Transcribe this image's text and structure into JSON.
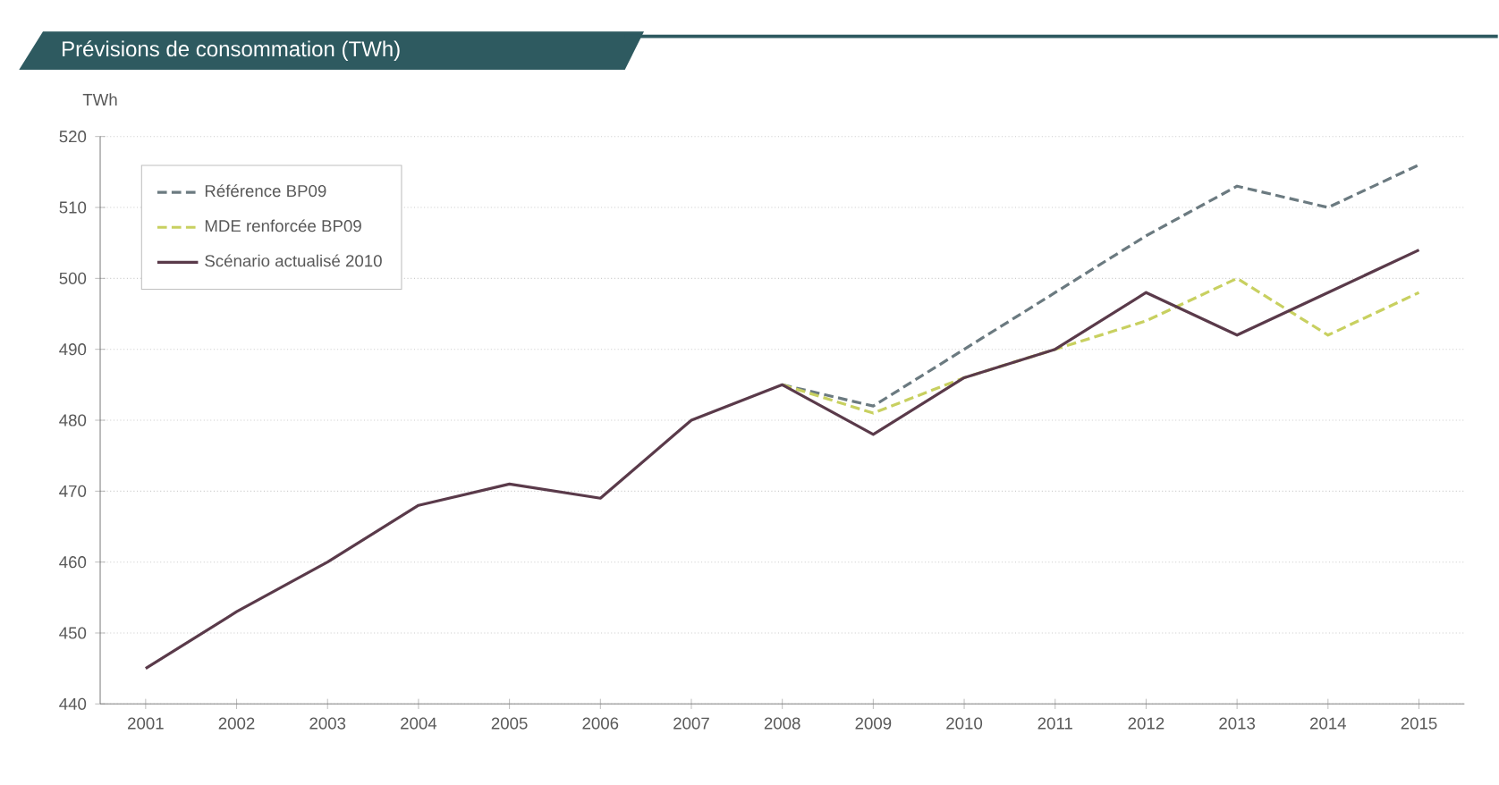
{
  "chart_data": {
    "type": "line",
    "title": "Prévisions de consommation (TWh)",
    "ylabel": "TWh",
    "categories": [
      "2001",
      "2002",
      "2003",
      "2004",
      "2005",
      "2006",
      "2007",
      "2008",
      "2009",
      "2010",
      "2011",
      "2012",
      "2013",
      "2014",
      "2015"
    ],
    "series": [
      {
        "name": "Référence BP09",
        "color": "#6b7a80",
        "line_style": "dashed",
        "values": [
          null,
          null,
          null,
          null,
          null,
          null,
          null,
          485,
          482,
          490,
          498,
          506,
          513,
          510,
          516
        ]
      },
      {
        "name": "MDE renforcée BP09",
        "color": "#c8d060",
        "line_style": "dashed",
        "values": [
          null,
          null,
          null,
          null,
          null,
          null,
          null,
          485,
          481,
          486,
          490,
          494,
          500,
          492,
          498
        ]
      },
      {
        "name": "Scénario actualisé 2010",
        "color": "#5a3a4a",
        "line_style": "solid",
        "values": [
          445,
          453,
          460,
          468,
          471,
          469,
          480,
          485,
          478,
          486,
          490,
          498,
          492,
          498,
          504
        ]
      }
    ],
    "ylim": [
      440,
      520
    ],
    "yticks": [
      440,
      450,
      460,
      470,
      480,
      490,
      500,
      510,
      520
    ],
    "grid": "y",
    "legend": "top left",
    "marker": "none"
  }
}
